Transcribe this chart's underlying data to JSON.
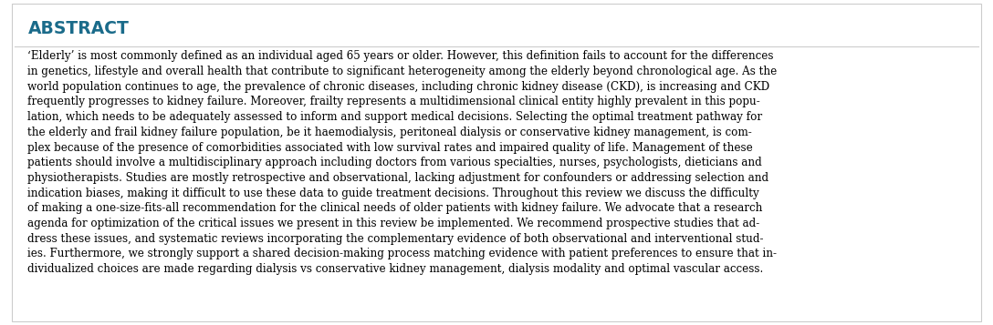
{
  "title": "ABSTRACT",
  "title_color": "#1a6b8a",
  "title_fontsize": 13.5,
  "body_lines": [
    "‘Elderly’ is most commonly defined as an individual aged 65 years or older. However, this definition fails to account for the differences",
    "in genetics, lifestyle and overall health that contribute to significant heterogeneity among the elderly beyond chronological age. As the",
    "world population continues to age, the prevalence of chronic diseases, including chronic kidney disease (CKD), is increasing and CKD",
    "frequently progresses to kidney failure. Moreover, frailty represents a multidimensional clinical entity highly prevalent in this popu-",
    "lation, which needs to be adequately assessed to inform and support medical decisions. Selecting the optimal treatment pathway for",
    "the elderly and frail kidney failure population, be it haemodialysis, peritoneal dialysis or conservative kidney management, is com-",
    "plex because of the presence of comorbidities associated with low survival rates and impaired quality of life. Management of these",
    "patients should involve a multidisciplinary approach including doctors from various specialties, nurses, psychologists, dieticians and",
    "physiotherapists. Studies are mostly retrospective and observational, lacking adjustment for confounders or addressing selection and",
    "indication biases, making it difficult to use these data to guide treatment decisions. Throughout this review we discuss the difficulty",
    "of making a one-size-fits-all recommendation for the clinical needs of older patients with kidney failure. We advocate that a research",
    "agenda for optimization of the critical issues we present in this review be implemented. We recommend prospective studies that ad-",
    "dress these issues, and systematic reviews incorporating the complementary evidence of both observational and interventional stud-",
    "ies. Furthermore, we strongly support a shared decision-making process matching evidence with patient preferences to ensure that in-",
    "dividualized choices are made regarding dialysis vs conservative kidney management, dialysis modality and optimal vascular access."
  ],
  "body_fontsize": 8.55,
  "body_color": "#000000",
  "background_color": "#ffffff",
  "border_color": "#cccccc",
  "fig_width": 10.88,
  "fig_height": 3.57
}
